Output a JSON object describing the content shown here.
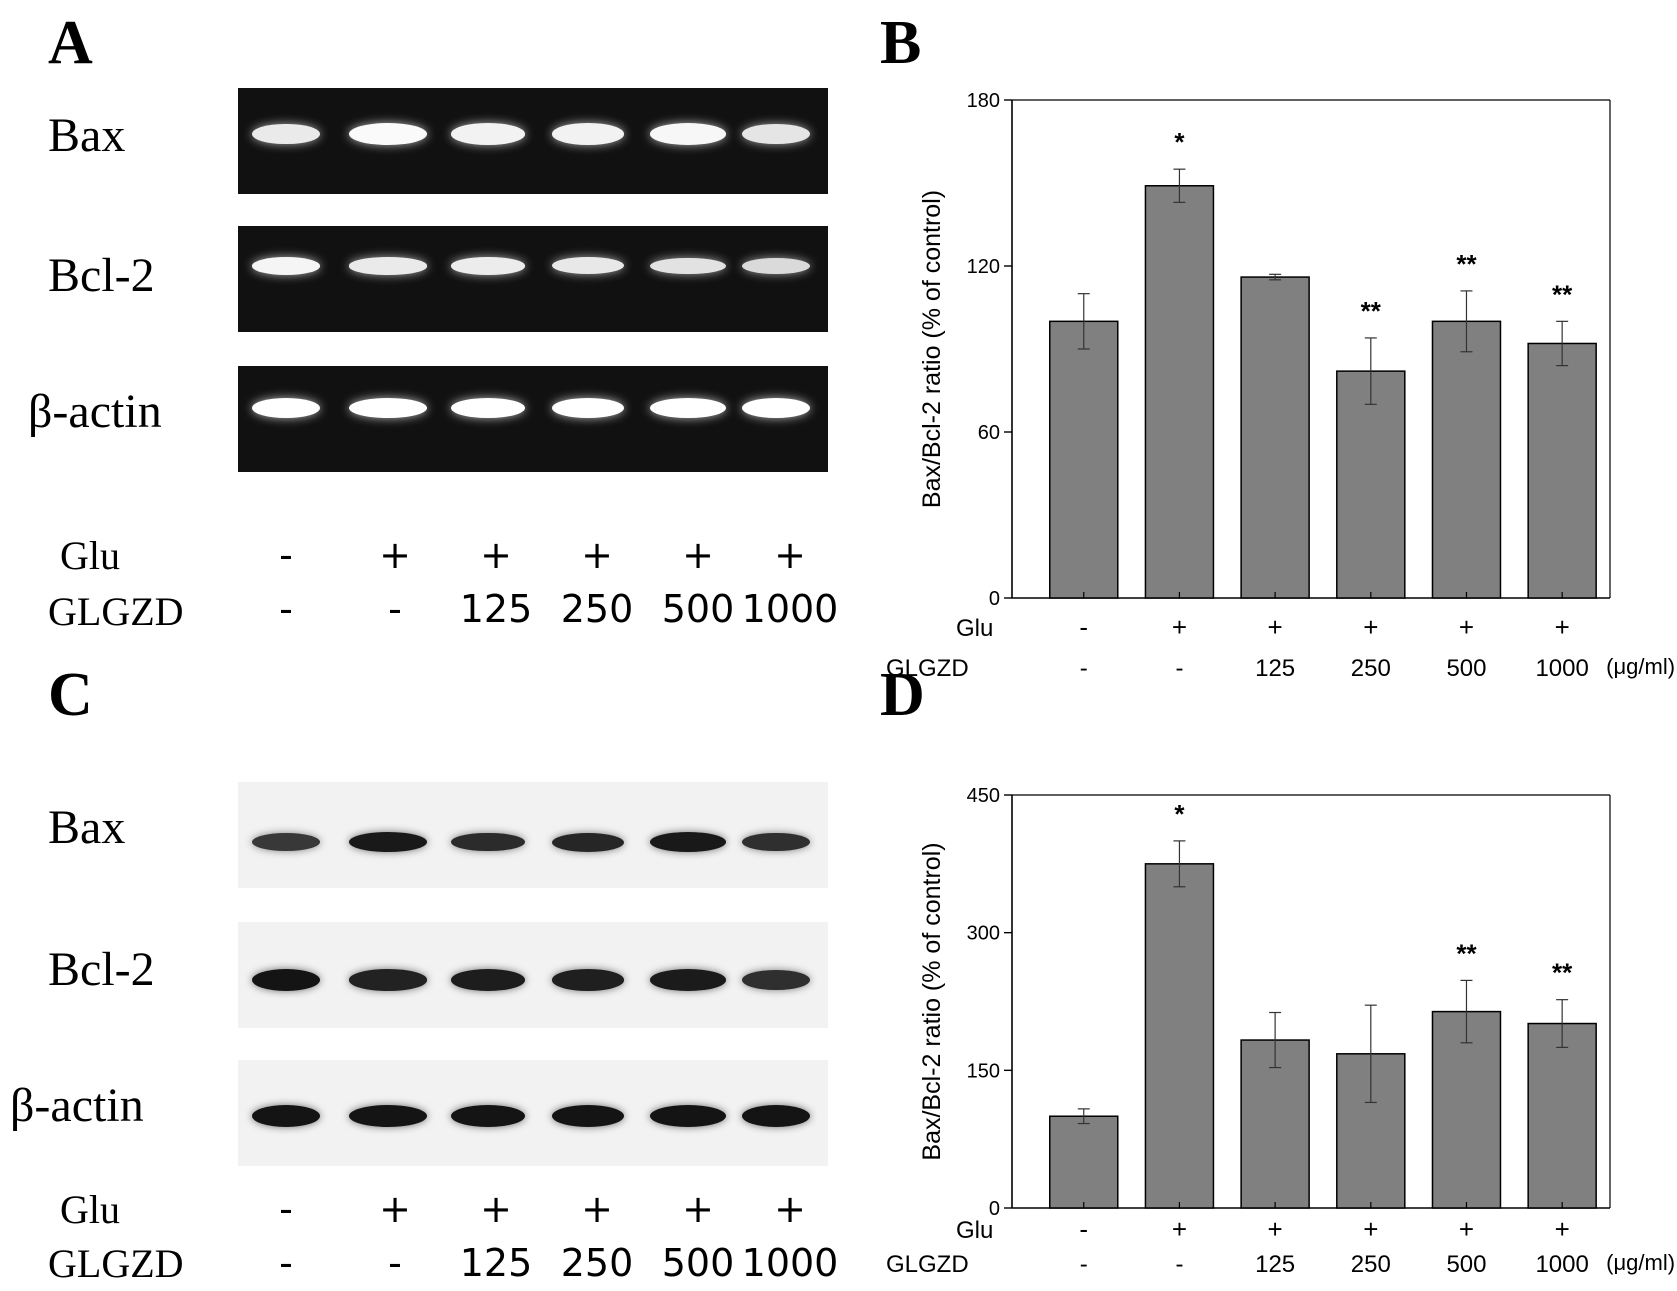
{
  "panels": {
    "a": {
      "letter": "A",
      "blots": [
        {
          "label": "Bax",
          "intensity": [
            0.8,
            0.95,
            0.88,
            0.88,
            0.92,
            0.75
          ]
        },
        {
          "label": "Bcl-2",
          "intensity": [
            0.9,
            0.8,
            0.82,
            0.78,
            0.72,
            0.65
          ]
        },
        {
          "label": "β-actin",
          "intensity": [
            1,
            1,
            1,
            1,
            1,
            1
          ]
        }
      ],
      "treatment": {
        "glu_label": "Glu",
        "glu": [
          "-",
          "+",
          "+",
          "+",
          "+",
          "+"
        ],
        "glgzd_label": "GLGZD",
        "glgzd": [
          "-",
          "-",
          "125",
          "250",
          "500",
          "1000"
        ]
      }
    },
    "b": {
      "letter": "B"
    },
    "c": {
      "letter": "C",
      "blots": [
        {
          "label": "Bax",
          "intensity": [
            0.6,
            0.95,
            0.75,
            0.8,
            0.95,
            0.7
          ]
        },
        {
          "label": "Bcl-2",
          "intensity": [
            1.0,
            0.85,
            0.9,
            0.88,
            0.92,
            0.7
          ]
        },
        {
          "label": "β-actin",
          "intensity": [
            1,
            1,
            1,
            1,
            1,
            1
          ]
        }
      ],
      "treatment": {
        "glu_label": "Glu",
        "glu": [
          "-",
          "+",
          "+",
          "+",
          "+",
          "+"
        ],
        "glgzd_label": "GLGZD",
        "glgzd": [
          "-",
          "-",
          "125",
          "250",
          "500",
          "1000"
        ]
      }
    },
    "d": {
      "letter": "D"
    }
  },
  "chart_data": [
    {
      "type": "bar",
      "panel": "B",
      "ylabel": "Bax/Bcl-2 ratio (% of control)",
      "ylim": [
        0,
        180
      ],
      "yticks": [
        0,
        60,
        120,
        180
      ],
      "glu_label": "Glu",
      "glu": [
        "-",
        "+",
        "+",
        "+",
        "+",
        "+"
      ],
      "glgzd_label": "GLGZD",
      "glgzd": [
        "-",
        "-",
        "125",
        "250",
        "500",
        "1000"
      ],
      "unit": "(μg/ml)",
      "values": [
        100,
        149,
        116,
        82,
        100,
        92
      ],
      "errors": [
        10,
        6,
        1,
        12,
        11,
        8
      ],
      "significance": [
        "",
        "*",
        "",
        "**",
        "**",
        "**"
      ],
      "bar_color": "#808080"
    },
    {
      "type": "bar",
      "panel": "D",
      "ylabel": "Bax/Bcl-2 ratio (% of control)",
      "ylim": [
        0,
        450
      ],
      "yticks": [
        0,
        150,
        300,
        450
      ],
      "glu_label": "Glu",
      "glu": [
        "-",
        "+",
        "+",
        "+",
        "+",
        "+"
      ],
      "glgzd_label": "GLGZD",
      "glgzd": [
        "-",
        "-",
        "125",
        "250",
        "500",
        "1000"
      ],
      "unit": "(μg/ml)",
      "values": [
        100,
        375,
        183,
        168,
        214,
        201
      ],
      "errors": [
        8,
        25,
        30,
        53,
        34,
        26
      ],
      "significance": [
        "",
        "*",
        "",
        "",
        "**",
        "**"
      ],
      "bar_color": "#808080"
    }
  ]
}
